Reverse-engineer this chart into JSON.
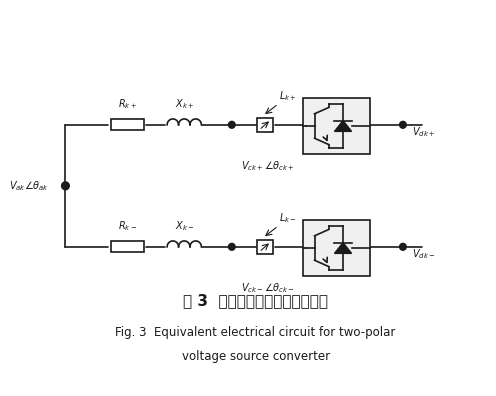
{
  "title_cn": "图 3  双极电压源换流器等值电路",
  "title_en1": "Fig. 3  Equivalent electrical circuit for two-polar",
  "title_en2": "voltage source converter",
  "bg_color": "#ffffff",
  "line_color": "#1a1a1a",
  "label_color": "#1a1a1a",
  "upper_labels": {
    "R": "R_{k+}",
    "X": "X_{k+}",
    "L": "L_{k+}",
    "Vc": "V_{ck+}\\angle\\theta_{ck+}",
    "Vd": "V_{dk+}",
    "Va": "V_{ak}\\angle\\theta_{ak}"
  },
  "lower_labels": {
    "R": "R_{k-}",
    "X": "X_{k-}",
    "L": "L_{k-}",
    "Vc": "V_{ck-}\\angle\\theta_{ck-}",
    "Vd": "V_{dk-}"
  }
}
